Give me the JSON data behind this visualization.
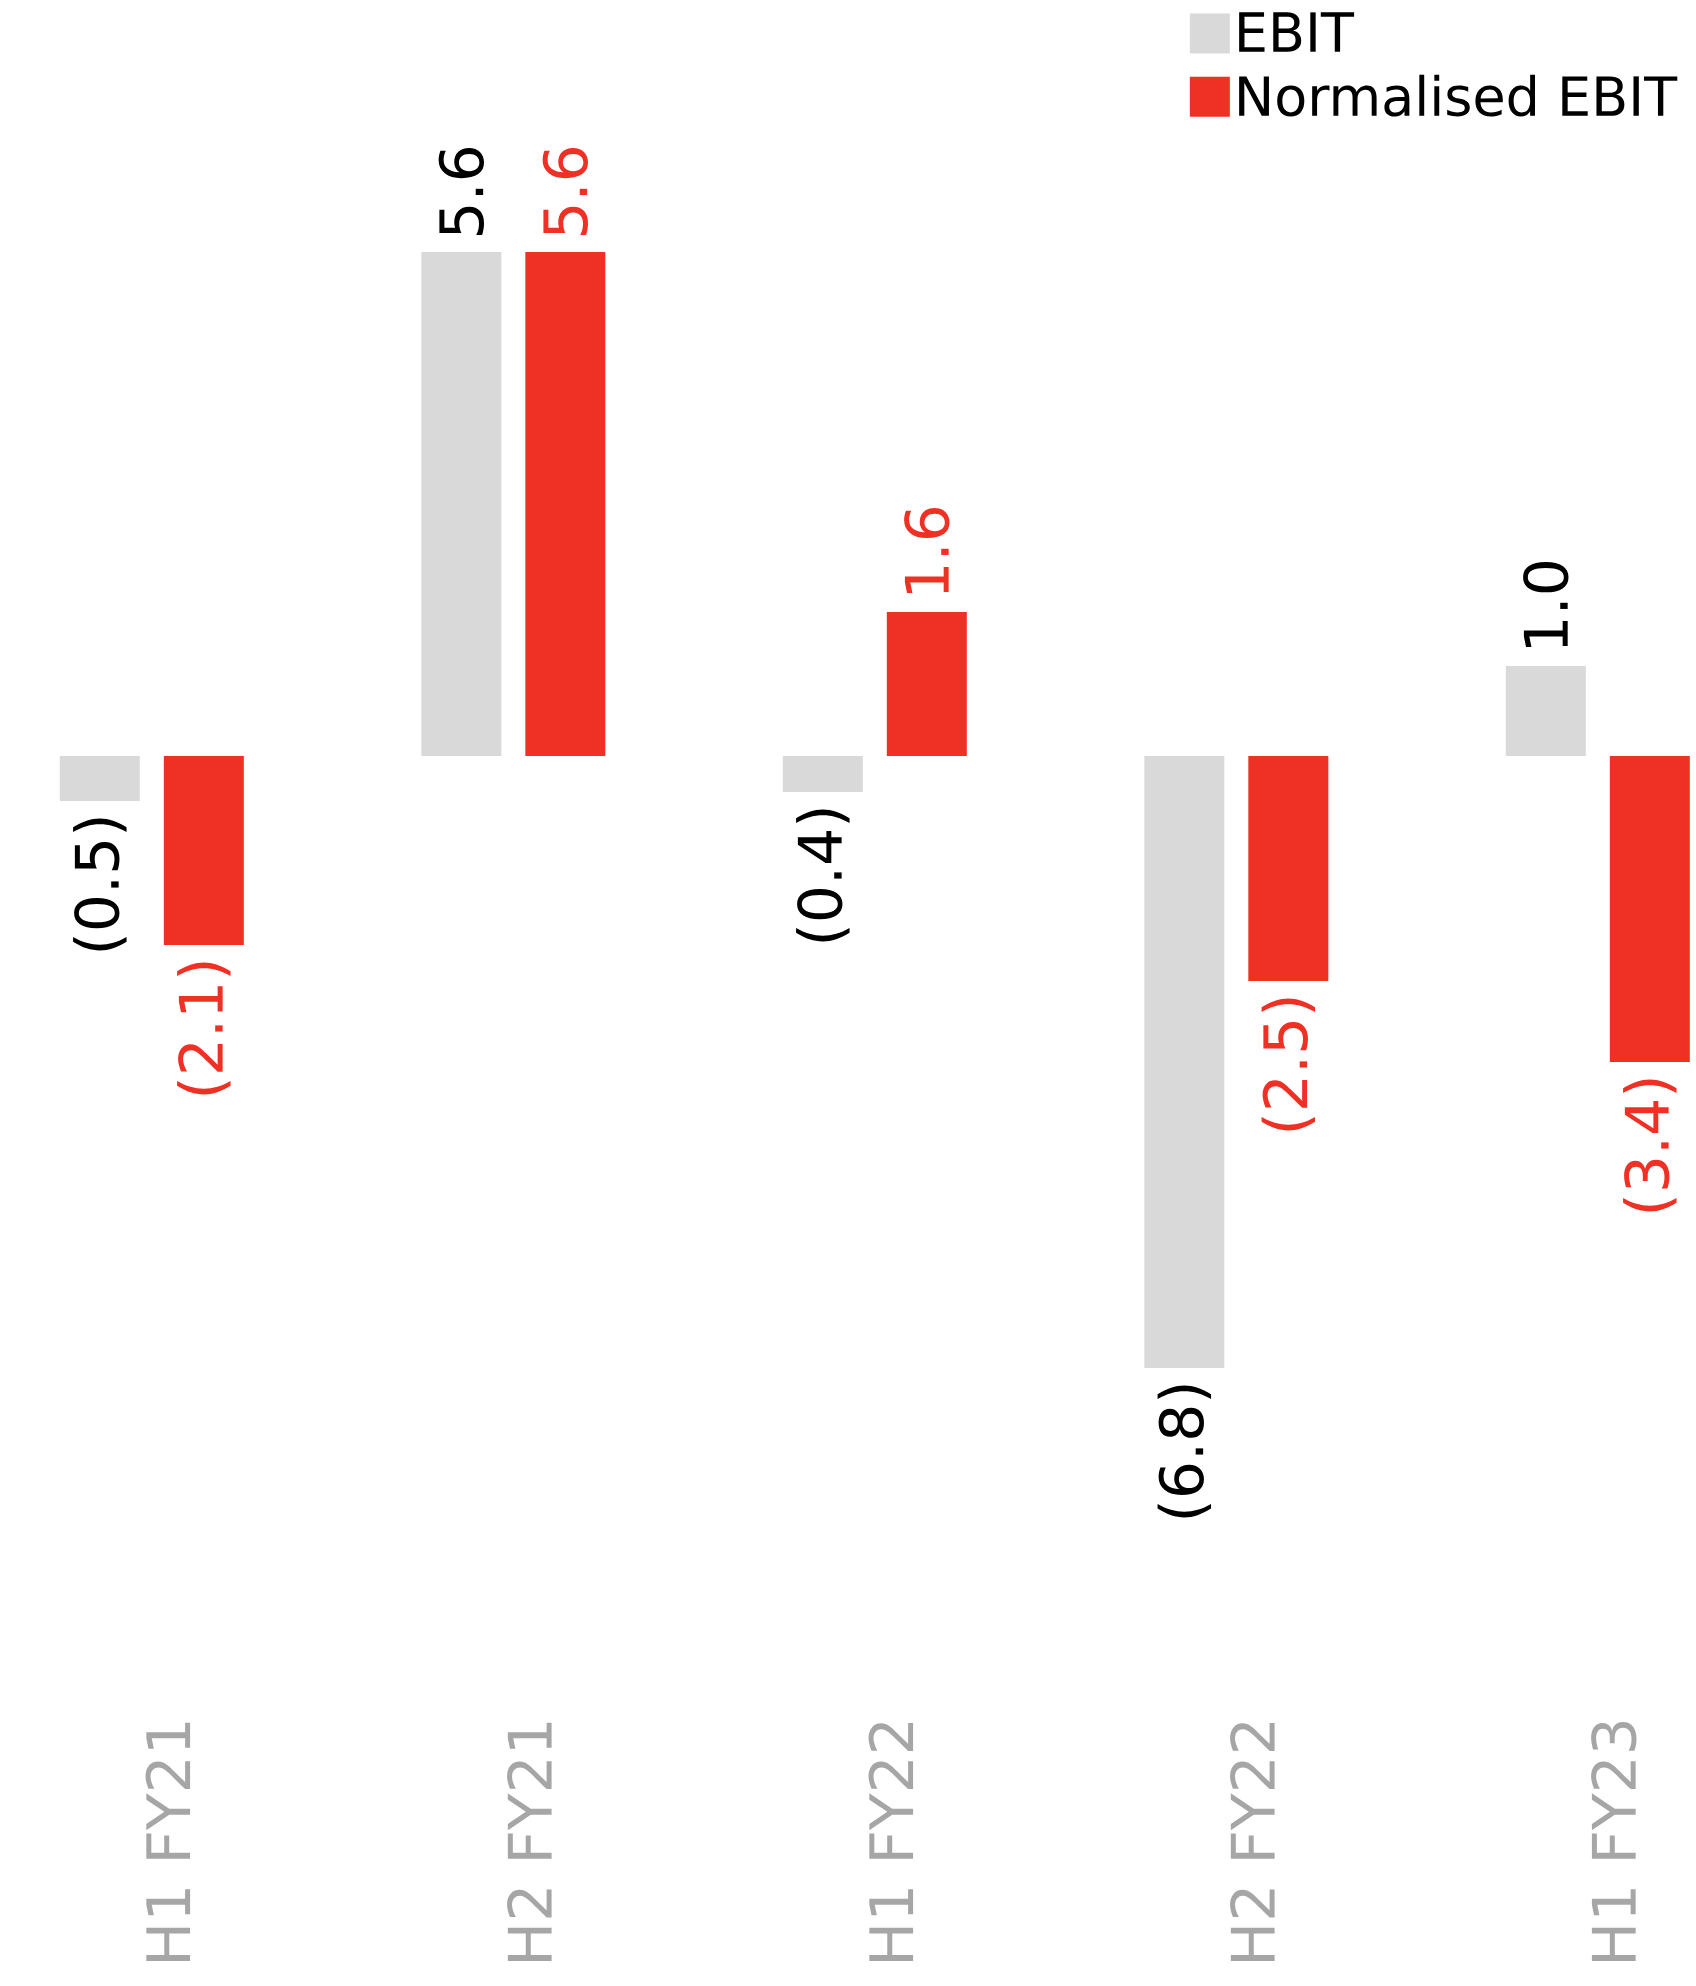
{
  "chart_data": {
    "type": "bar",
    "categories": [
      "H1  FY21",
      "H2  FY21",
      "H1  FY22",
      "H2  FY22",
      "H1  FY23"
    ],
    "series": [
      {
        "name": "EBIT",
        "color": "#d9d9d9",
        "values": [
          -0.5,
          5.6,
          -0.4,
          -6.8,
          1.0
        ],
        "value_labels": [
          "(0.5)",
          "5.6",
          "(0.4)",
          "(6.8)",
          "1.0"
        ]
      },
      {
        "name": "Normalised EBIT",
        "color": "#ee3124",
        "values": [
          -2.1,
          5.6,
          1.6,
          -2.5,
          -3.4
        ],
        "value_labels": [
          "(2.1)",
          "5.6",
          "1.6",
          "(2.5)",
          "(3.4)"
        ]
      }
    ],
    "legend": "top right"
  }
}
